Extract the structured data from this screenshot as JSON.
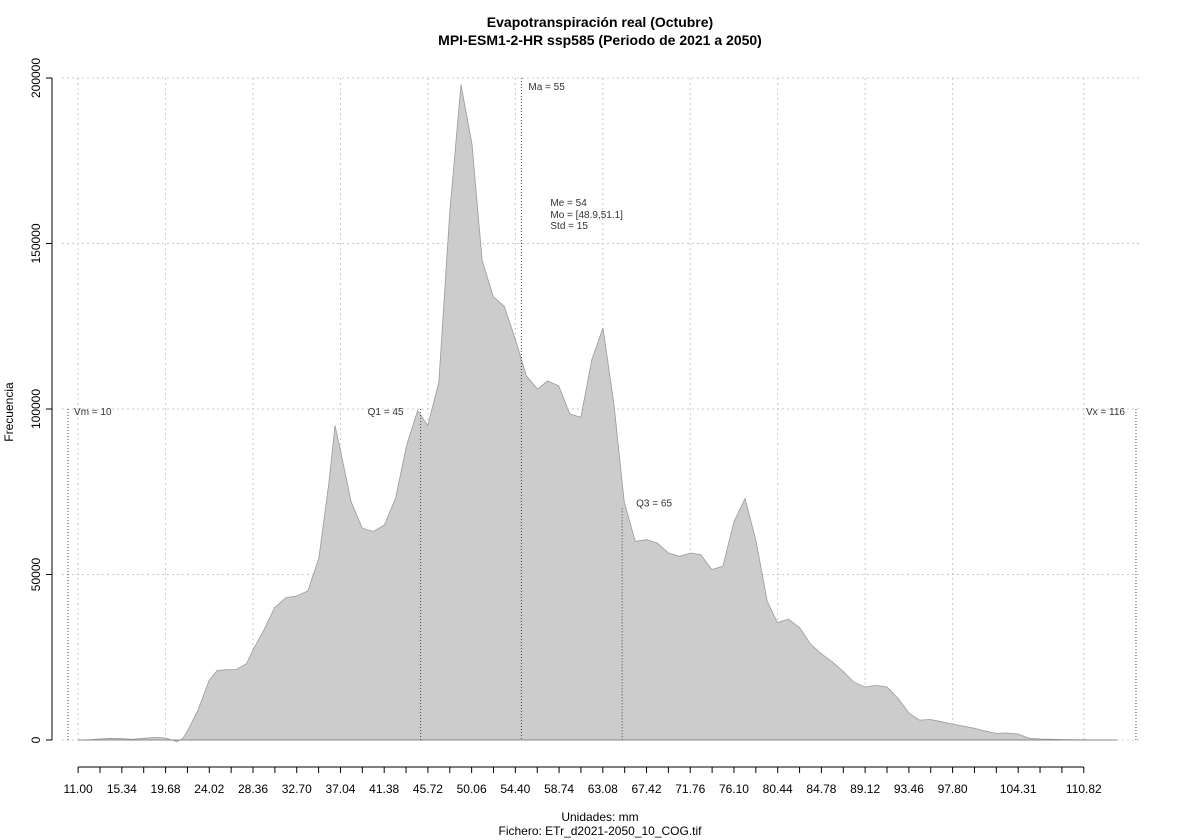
{
  "chart_data": {
    "type": "area",
    "title": "Evapotranspiración real (Octubre)",
    "subtitle": "MPI-ESM1-2-HR ssp585 (Periodo de 2021 a 2050)",
    "xlabel": "Unidades: mm",
    "ylabel": "Frecuencia",
    "footer": "Fichero: ETr_d2021-2050_10_COG.tif",
    "xlim": [
      9.4,
      116.6
    ],
    "ylim": [
      0,
      200000
    ],
    "yticks": [
      0,
      50000,
      100000,
      150000,
      200000
    ],
    "ytick_labels": [
      "0",
      "50000",
      "100000",
      "150000",
      "200000"
    ],
    "xticks": [
      11.0,
      15.34,
      19.68,
      24.02,
      28.36,
      32.7,
      37.04,
      41.38,
      45.72,
      50.06,
      54.4,
      58.74,
      63.08,
      67.42,
      71.76,
      76.1,
      80.44,
      84.78,
      89.12,
      93.46,
      97.8,
      104.31,
      110.82
    ],
    "xtick_labels": [
      "11.00",
      "15.34",
      "19.68",
      "24.02",
      "28.36",
      "32.70",
      "37.04",
      "41.38",
      "45.72",
      "50.06",
      "54.40",
      "58.74",
      "63.08",
      "67.42",
      "71.76",
      "76.10",
      "80.44",
      "84.78",
      "89.12",
      "93.46",
      "97.80",
      "104.31",
      "110.82"
    ],
    "grid": true,
    "fill_color": "#cccccc",
    "series": [
      {
        "x": [
          11.0,
          12.1,
          13.1,
          14.2,
          15.3,
          16.4,
          17.5,
          18.6,
          19.7,
          20.8,
          21.4,
          21.9,
          22.9,
          24.0,
          24.8,
          25.6,
          26.7,
          27.7,
          28.4,
          29.4,
          30.5,
          31.6,
          32.7,
          33.8,
          34.9,
          35.9,
          36.5,
          37.0,
          38.1,
          39.2,
          40.3,
          41.4,
          42.5,
          43.6,
          44.7,
          45.7,
          46.8,
          47.9,
          49.0,
          50.1,
          51.1,
          52.2,
          53.3,
          54.4,
          55.5,
          56.6,
          57.6,
          58.7,
          59.8,
          60.9,
          62.0,
          63.1,
          64.2,
          65.2,
          66.3,
          67.4,
          68.5,
          69.6,
          70.7,
          71.8,
          72.8,
          73.9,
          75.0,
          76.1,
          77.2,
          78.3,
          79.4,
          80.4,
          81.5,
          82.6,
          83.7,
          84.8,
          85.9,
          87.0,
          88.0,
          89.1,
          90.2,
          91.3,
          92.4,
          93.5,
          94.5,
          95.6,
          96.7,
          97.8,
          98.9,
          100.0,
          101.1,
          102.1,
          103.2,
          104.3,
          105.4,
          106.5,
          107.6,
          108.7,
          109.7,
          110.8,
          111.9,
          113.0,
          114.1
        ],
        "values": [
          0,
          100,
          300,
          500,
          400,
          200,
          500,
          800,
          600,
          -500,
          500,
          3000,
          9000,
          18000,
          21000,
          21200,
          21300,
          23000,
          27500,
          33000,
          40000,
          43000,
          43500,
          45000,
          55000,
          78000,
          95000,
          88000,
          72000,
          64000,
          63000,
          65000,
          73000,
          89000,
          99500,
          95000,
          108000,
          160000,
          198000,
          180000,
          145000,
          134000,
          131000,
          121000,
          110000,
          106000,
          108500,
          107000,
          98500,
          97500,
          115000,
          124500,
          101000,
          72000,
          60000,
          60500,
          59500,
          56500,
          55500,
          56500,
          56000,
          51500,
          52500,
          66000,
          73000,
          60000,
          42000,
          35500,
          36500,
          34000,
          29000,
          26000,
          23500,
          20500,
          17500,
          16000,
          16500,
          16000,
          12500,
          8000,
          6000,
          6200,
          5500,
          4800,
          4200,
          3500,
          2700,
          2000,
          2100,
          1800,
          500,
          300,
          200,
          150,
          100,
          50,
          30,
          20,
          0
        ]
      }
    ],
    "annotations": {
      "vm": "Vm = 10",
      "q1": "Q1 = 45",
      "ma": "Ma = 55",
      "me": "Me = 54",
      "mo": "Mo = [48.9,51.1]",
      "std": "Std = 15",
      "q3": "Q3 = 65",
      "vx": "Vx = 116"
    },
    "vlines": [
      {
        "key": "vm",
        "x": 10,
        "top": 100000
      },
      {
        "key": "q1",
        "x": 45,
        "top": 100000
      },
      {
        "key": "ma",
        "x": 55,
        "top": 200000
      },
      {
        "key": "q3",
        "x": 65,
        "top": 70000
      },
      {
        "key": "vx",
        "x": 116,
        "top": 100000
      }
    ]
  }
}
